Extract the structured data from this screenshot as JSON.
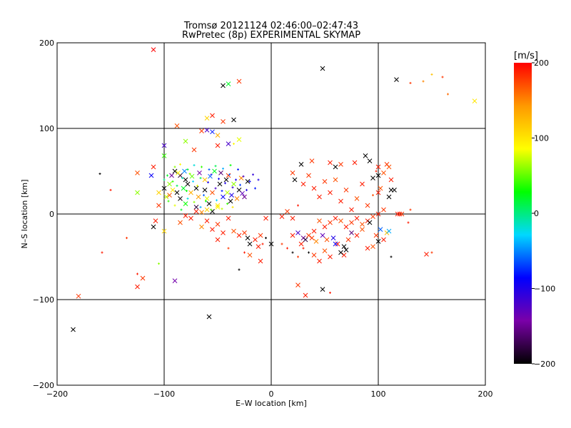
{
  "chart_data": {
    "type": "scatter",
    "title": "Tromsø 20121124 02:46:00–02:47:43",
    "subtitle": "RwPretec (8p) EXPERIMENTAL SKYMAP",
    "xlabel": "E–W location [km]",
    "ylabel": "N–S location [km]",
    "xlim": [
      -200,
      200
    ],
    "ylim": [
      -200,
      200
    ],
    "xticks": [
      -200,
      -100,
      0,
      100,
      200
    ],
    "yticks": [
      -200,
      -100,
      0,
      100,
      200
    ],
    "grid": true,
    "colorbar": {
      "label": "[m/s]",
      "range": [
        -200,
        200
      ],
      "ticks": [
        200,
        100,
        0,
        -100,
        -200
      ],
      "colormap": [
        "#000000",
        "#7a00a8",
        "#0000ff",
        "#00d8ff",
        "#00ff00",
        "#ffff00",
        "#ff9900",
        "#ff0000"
      ]
    },
    "markers": [
      "x (large)",
      "+ (small)"
    ],
    "points": [
      [
        -110,
        192,
        200,
        "x"
      ],
      [
        -30,
        155,
        180,
        "x"
      ],
      [
        -45,
        150,
        -200,
        "x"
      ],
      [
        -40,
        152,
        20,
        "x"
      ],
      [
        48,
        170,
        -200,
        "x"
      ],
      [
        117,
        157,
        -200,
        "x"
      ],
      [
        160,
        160,
        180,
        "+"
      ],
      [
        150,
        163,
        120,
        "+"
      ],
      [
        190,
        132,
        100,
        "x"
      ],
      [
        165,
        140,
        160,
        "+"
      ],
      [
        130,
        153,
        180,
        "+"
      ],
      [
        142,
        155,
        150,
        "+"
      ],
      [
        -55,
        115,
        190,
        "x"
      ],
      [
        -60,
        112,
        110,
        "x"
      ],
      [
        -35,
        110,
        -200,
        "x"
      ],
      [
        -45,
        108,
        180,
        "x"
      ],
      [
        -88,
        103,
        170,
        "x"
      ],
      [
        -60,
        98,
        -120,
        "x"
      ],
      [
        -55,
        96,
        -80,
        "x"
      ],
      [
        -65,
        97,
        180,
        "x"
      ],
      [
        -50,
        92,
        130,
        "x"
      ],
      [
        -80,
        85,
        60,
        "x"
      ],
      [
        -30,
        87,
        80,
        "x"
      ],
      [
        -40,
        82,
        -120,
        "x"
      ],
      [
        -50,
        80,
        190,
        "x"
      ],
      [
        -100,
        80,
        -120,
        "x"
      ],
      [
        -35,
        82,
        90,
        "+"
      ],
      [
        -100,
        68,
        40,
        "x"
      ],
      [
        -72,
        75,
        180,
        "x"
      ],
      [
        -110,
        55,
        190,
        "x"
      ],
      [
        -125,
        48,
        170,
        "x"
      ],
      [
        -112,
        45,
        -90,
        "x"
      ],
      [
        -90,
        50,
        -200,
        "x"
      ],
      [
        -85,
        45,
        -180,
        "x"
      ],
      [
        -80,
        40,
        -200,
        "x"
      ],
      [
        -95,
        35,
        60,
        "x"
      ],
      [
        -100,
        30,
        -200,
        "x"
      ],
      [
        -92,
        28,
        100,
        "x"
      ],
      [
        -88,
        25,
        -200,
        "x"
      ],
      [
        -82,
        30,
        20,
        "x"
      ],
      [
        -78,
        35,
        -200,
        "x"
      ],
      [
        -75,
        25,
        130,
        "x"
      ],
      [
        -70,
        30,
        -200,
        "x"
      ],
      [
        -68,
        20,
        140,
        "x"
      ],
      [
        -62,
        28,
        -200,
        "x"
      ],
      [
        -60,
        18,
        80,
        "x"
      ],
      [
        -58,
        12,
        -200,
        "x"
      ],
      [
        -55,
        25,
        170,
        "x"
      ],
      [
        -50,
        10,
        100,
        "x"
      ],
      [
        -48,
        35,
        -200,
        "x"
      ],
      [
        -45,
        20,
        -90,
        "x"
      ],
      [
        -42,
        40,
        -200,
        "x"
      ],
      [
        -40,
        45,
        180,
        "x"
      ],
      [
        -38,
        15,
        -200,
        "x"
      ],
      [
        -35,
        35,
        60,
        "x"
      ],
      [
        -30,
        28,
        -200,
        "x"
      ],
      [
        -28,
        42,
        150,
        "x"
      ],
      [
        -25,
        20,
        -150,
        "x"
      ],
      [
        -22,
        38,
        -200,
        "x"
      ],
      [
        -60,
        5,
        110,
        "x"
      ],
      [
        -55,
        3,
        -200,
        "x"
      ],
      [
        -50,
        8,
        90,
        "x"
      ],
      [
        -70,
        8,
        -180,
        "x"
      ],
      [
        -65,
        2,
        150,
        "x"
      ],
      [
        -80,
        12,
        30,
        "x"
      ],
      [
        -85,
        18,
        -200,
        "x"
      ],
      [
        -95,
        22,
        170,
        "x"
      ],
      [
        -100,
        40,
        0,
        "+"
      ],
      [
        -97,
        45,
        20,
        "+"
      ],
      [
        -92,
        38,
        40,
        "+"
      ],
      [
        -88,
        33,
        10,
        "+"
      ],
      [
        -83,
        42,
        -10,
        "+"
      ],
      [
        -79,
        27,
        30,
        "+"
      ],
      [
        -76,
        47,
        60,
        "+"
      ],
      [
        -73,
        38,
        -30,
        "+"
      ],
      [
        -69,
        33,
        80,
        "+"
      ],
      [
        -66,
        42,
        10,
        "+"
      ],
      [
        -63,
        22,
        -60,
        "+"
      ],
      [
        -59,
        37,
        -100,
        "+"
      ],
      [
        -56,
        46,
        -110,
        "+"
      ],
      [
        -52,
        30,
        -120,
        "+"
      ],
      [
        -49,
        41,
        -90,
        "+"
      ],
      [
        -46,
        27,
        -80,
        "+"
      ],
      [
        -43,
        36,
        -100,
        "+"
      ],
      [
        -39,
        46,
        -60,
        "+"
      ],
      [
        -36,
        31,
        -110,
        "+"
      ],
      [
        -33,
        40,
        -95,
        "+"
      ],
      [
        -29,
        34,
        -70,
        "+"
      ],
      [
        -26,
        44,
        -120,
        "+"
      ],
      [
        -23,
        28,
        -100,
        "+"
      ],
      [
        -20,
        38,
        -90,
        "+"
      ],
      [
        -17,
        46,
        -110,
        "+"
      ],
      [
        -15,
        30,
        -80,
        "+"
      ],
      [
        -12,
        40,
        -100,
        "+"
      ],
      [
        -90,
        55,
        60,
        "+"
      ],
      [
        -85,
        58,
        90,
        "+"
      ],
      [
        -78,
        52,
        20,
        "+"
      ],
      [
        -72,
        57,
        -20,
        "+"
      ],
      [
        -65,
        55,
        40,
        "+"
      ],
      [
        -58,
        52,
        -60,
        "+"
      ],
      [
        -52,
        56,
        10,
        "+"
      ],
      [
        -45,
        53,
        -40,
        "+"
      ],
      [
        -38,
        57,
        30,
        "+"
      ],
      [
        -31,
        52,
        -80,
        "+"
      ],
      [
        -96,
        15,
        40,
        "+"
      ],
      [
        -90,
        10,
        80,
        "+"
      ],
      [
        -84,
        5,
        20,
        "+"
      ],
      [
        -78,
        18,
        -20,
        "+"
      ],
      [
        -72,
        14,
        60,
        "+"
      ],
      [
        -66,
        8,
        -40,
        "+"
      ],
      [
        -61,
        15,
        20,
        "+"
      ],
      [
        -56,
        5,
        50,
        "+"
      ],
      [
        -51,
        16,
        -30,
        "+"
      ],
      [
        -46,
        6,
        70,
        "+"
      ],
      [
        -41,
        12,
        40,
        "+"
      ],
      [
        -36,
        8,
        100,
        "+"
      ],
      [
        -105,
        25,
        110,
        "x"
      ],
      [
        -98,
        20,
        70,
        "x"
      ],
      [
        -93,
        45,
        -150,
        "x"
      ],
      [
        -87,
        48,
        90,
        "x"
      ],
      [
        -81,
        50,
        -50,
        "x"
      ],
      [
        -74,
        44,
        50,
        "x"
      ],
      [
        -67,
        48,
        -140,
        "x"
      ],
      [
        -62,
        40,
        120,
        "x"
      ],
      [
        -57,
        44,
        -60,
        "x"
      ],
      [
        -53,
        50,
        20,
        "x"
      ],
      [
        -47,
        48,
        -160,
        "x"
      ],
      [
        -41,
        25,
        70,
        "x"
      ],
      [
        -37,
        22,
        -100,
        "x"
      ],
      [
        -32,
        18,
        150,
        "x"
      ],
      [
        -27,
        24,
        -130,
        "x"
      ],
      [
        -105,
        10,
        180,
        "x"
      ],
      [
        -125,
        25,
        60,
        "x"
      ],
      [
        -150,
        28,
        190,
        "+"
      ],
      [
        -160,
        47,
        -200,
        "+"
      ],
      [
        -135,
        -28,
        180,
        "+"
      ],
      [
        -110,
        -15,
        -200,
        "x"
      ],
      [
        -100,
        -20,
        110,
        "x"
      ],
      [
        -108,
        -8,
        190,
        "x"
      ],
      [
        -105,
        -58,
        60,
        "+"
      ],
      [
        -125,
        -70,
        190,
        "+"
      ],
      [
        -120,
        -75,
        180,
        "x"
      ],
      [
        -125,
        -85,
        190,
        "x"
      ],
      [
        -90,
        -78,
        -140,
        "x"
      ],
      [
        -180,
        -96,
        180,
        "x"
      ],
      [
        -185,
        -135,
        -200,
        "x"
      ],
      [
        -158,
        -45,
        190,
        "+"
      ],
      [
        -58,
        -120,
        -200,
        "x"
      ],
      [
        -70,
        3,
        190,
        "x"
      ],
      [
        -75,
        -5,
        190,
        "x"
      ],
      [
        -80,
        -2,
        190,
        "x"
      ],
      [
        -60,
        -8,
        190,
        "x"
      ],
      [
        -50,
        -12,
        180,
        "x"
      ],
      [
        -40,
        -5,
        190,
        "x"
      ],
      [
        -85,
        -10,
        170,
        "x"
      ],
      [
        -55,
        -18,
        190,
        "x"
      ],
      [
        -65,
        -15,
        150,
        "x"
      ],
      [
        -45,
        -22,
        190,
        "x"
      ],
      [
        -35,
        -20,
        170,
        "x"
      ],
      [
        -30,
        -25,
        190,
        "x"
      ],
      [
        -25,
        -22,
        180,
        "x"
      ],
      [
        -22,
        -28,
        -200,
        "x"
      ],
      [
        -20,
        -35,
        -200,
        "x"
      ],
      [
        -15,
        -30,
        190,
        "x"
      ],
      [
        -10,
        -25,
        180,
        "x"
      ],
      [
        -12,
        -38,
        190,
        "x"
      ],
      [
        -5,
        -28,
        -200,
        "+"
      ],
      [
        -8,
        -35,
        190,
        "+"
      ],
      [
        -20,
        -48,
        170,
        "x"
      ],
      [
        -10,
        -55,
        190,
        "x"
      ],
      [
        -30,
        -65,
        -200,
        "+"
      ],
      [
        0,
        -35,
        -200,
        "x"
      ],
      [
        -5,
        -5,
        190,
        "x"
      ],
      [
        -50,
        -30,
        190,
        "x"
      ],
      [
        -40,
        -40,
        180,
        "+"
      ],
      [
        -25,
        -45,
        190,
        "+"
      ],
      [
        10,
        -3,
        190,
        "x"
      ],
      [
        15,
        3,
        180,
        "x"
      ],
      [
        20,
        -5,
        190,
        "x"
      ],
      [
        25,
        10,
        190,
        "+"
      ],
      [
        22,
        40,
        -200,
        "x"
      ],
      [
        30,
        35,
        190,
        "x"
      ],
      [
        35,
        45,
        180,
        "x"
      ],
      [
        40,
        30,
        190,
        "x"
      ],
      [
        45,
        20,
        190,
        "x"
      ],
      [
        50,
        38,
        180,
        "x"
      ],
      [
        55,
        25,
        190,
        "x"
      ],
      [
        60,
        40,
        170,
        "x"
      ],
      [
        65,
        15,
        190,
        "x"
      ],
      [
        70,
        28,
        180,
        "x"
      ],
      [
        75,
        5,
        190,
        "x"
      ],
      [
        80,
        18,
        170,
        "x"
      ],
      [
        85,
        35,
        190,
        "x"
      ],
      [
        90,
        10,
        180,
        "x"
      ],
      [
        95,
        42,
        -200,
        "x"
      ],
      [
        100,
        25,
        190,
        "x"
      ],
      [
        105,
        5,
        180,
        "x"
      ],
      [
        110,
        20,
        -200,
        "x"
      ],
      [
        112,
        28,
        -200,
        "x"
      ],
      [
        95,
        22,
        170,
        "+"
      ],
      [
        100,
        45,
        -200,
        "x"
      ],
      [
        102,
        30,
        170,
        "x"
      ],
      [
        92,
        62,
        -200,
        "x"
      ],
      [
        98,
        50,
        190,
        "+"
      ],
      [
        105,
        48,
        170,
        "x"
      ],
      [
        112,
        40,
        190,
        "x"
      ],
      [
        118,
        0,
        190,
        "x"
      ],
      [
        122,
        0,
        180,
        "x"
      ],
      [
        100,
        0,
        190,
        "x"
      ],
      [
        95,
        -3,
        180,
        "x"
      ],
      [
        90,
        -8,
        190,
        "x"
      ],
      [
        85,
        -12,
        170,
        "x"
      ],
      [
        80,
        -5,
        190,
        "x"
      ],
      [
        75,
        -10,
        180,
        "x"
      ],
      [
        70,
        -15,
        190,
        "x"
      ],
      [
        65,
        -8,
        170,
        "x"
      ],
      [
        60,
        -5,
        190,
        "x"
      ],
      [
        55,
        -10,
        180,
        "x"
      ],
      [
        50,
        -15,
        190,
        "x"
      ],
      [
        45,
        -8,
        170,
        "x"
      ],
      [
        40,
        -20,
        190,
        "x"
      ],
      [
        35,
        -25,
        180,
        "x"
      ],
      [
        30,
        -28,
        -150,
        "x"
      ],
      [
        25,
        -22,
        -120,
        "x"
      ],
      [
        20,
        -25,
        190,
        "x"
      ],
      [
        28,
        -35,
        190,
        "x"
      ],
      [
        32,
        -30,
        -180,
        "x"
      ],
      [
        38,
        -28,
        180,
        "x"
      ],
      [
        42,
        -32,
        150,
        "x"
      ],
      [
        48,
        -25,
        -130,
        "x"
      ],
      [
        52,
        -30,
        170,
        "x"
      ],
      [
        58,
        -28,
        -100,
        "x"
      ],
      [
        62,
        -35,
        190,
        "x"
      ],
      [
        68,
        -38,
        -200,
        "x"
      ],
      [
        72,
        -30,
        180,
        "x"
      ],
      [
        75,
        -22,
        -160,
        "x"
      ],
      [
        80,
        -25,
        190,
        "x"
      ],
      [
        85,
        -18,
        170,
        "x"
      ],
      [
        92,
        -10,
        -200,
        "x"
      ],
      [
        98,
        -25,
        180,
        "x"
      ],
      [
        102,
        -18,
        -60,
        "x"
      ],
      [
        108,
        -22,
        120,
        "x"
      ],
      [
        110,
        -20,
        -40,
        "x"
      ],
      [
        105,
        -30,
        190,
        "x"
      ],
      [
        100,
        -32,
        -200,
        "x"
      ],
      [
        95,
        -38,
        170,
        "x"
      ],
      [
        90,
        -40,
        190,
        "x"
      ],
      [
        70,
        -42,
        -200,
        "x"
      ],
      [
        68,
        -48,
        190,
        "x"
      ],
      [
        65,
        -45,
        -200,
        "x"
      ],
      [
        55,
        -50,
        190,
        "x"
      ],
      [
        50,
        -43,
        170,
        "x"
      ],
      [
        45,
        -55,
        190,
        "x"
      ],
      [
        40,
        -48,
        180,
        "x"
      ],
      [
        35,
        -45,
        -200,
        "+"
      ],
      [
        30,
        -40,
        190,
        "+"
      ],
      [
        25,
        -50,
        180,
        "+"
      ],
      [
        20,
        -45,
        -200,
        "+"
      ],
      [
        15,
        -40,
        190,
        "+"
      ],
      [
        10,
        -35,
        180,
        "+"
      ],
      [
        48,
        -88,
        -200,
        "x"
      ],
      [
        55,
        -92,
        190,
        "+"
      ],
      [
        32,
        -95,
        190,
        "x"
      ],
      [
        25,
        -83,
        180,
        "x"
      ],
      [
        145,
        -47,
        190,
        "x"
      ],
      [
        112,
        -50,
        -200,
        "+"
      ],
      [
        150,
        -45,
        180,
        "+"
      ],
      [
        60,
        -35,
        -90,
        "x"
      ],
      [
        120,
        0,
        190,
        "x"
      ],
      [
        115,
        28,
        -200,
        "x"
      ],
      [
        128,
        -10,
        190,
        "+"
      ],
      [
        130,
        5,
        180,
        "+"
      ],
      [
        20,
        48,
        180,
        "x"
      ],
      [
        28,
        58,
        -200,
        "x"
      ],
      [
        38,
        62,
        180,
        "x"
      ],
      [
        55,
        60,
        190,
        "x"
      ],
      [
        60,
        55,
        -200,
        "x"
      ],
      [
        65,
        58,
        180,
        "x"
      ],
      [
        78,
        60,
        190,
        "x"
      ],
      [
        88,
        68,
        -200,
        "x"
      ],
      [
        100,
        55,
        190,
        "x"
      ],
      [
        108,
        58,
        180,
        "x"
      ],
      [
        110,
        55,
        170,
        "x"
      ]
    ]
  }
}
